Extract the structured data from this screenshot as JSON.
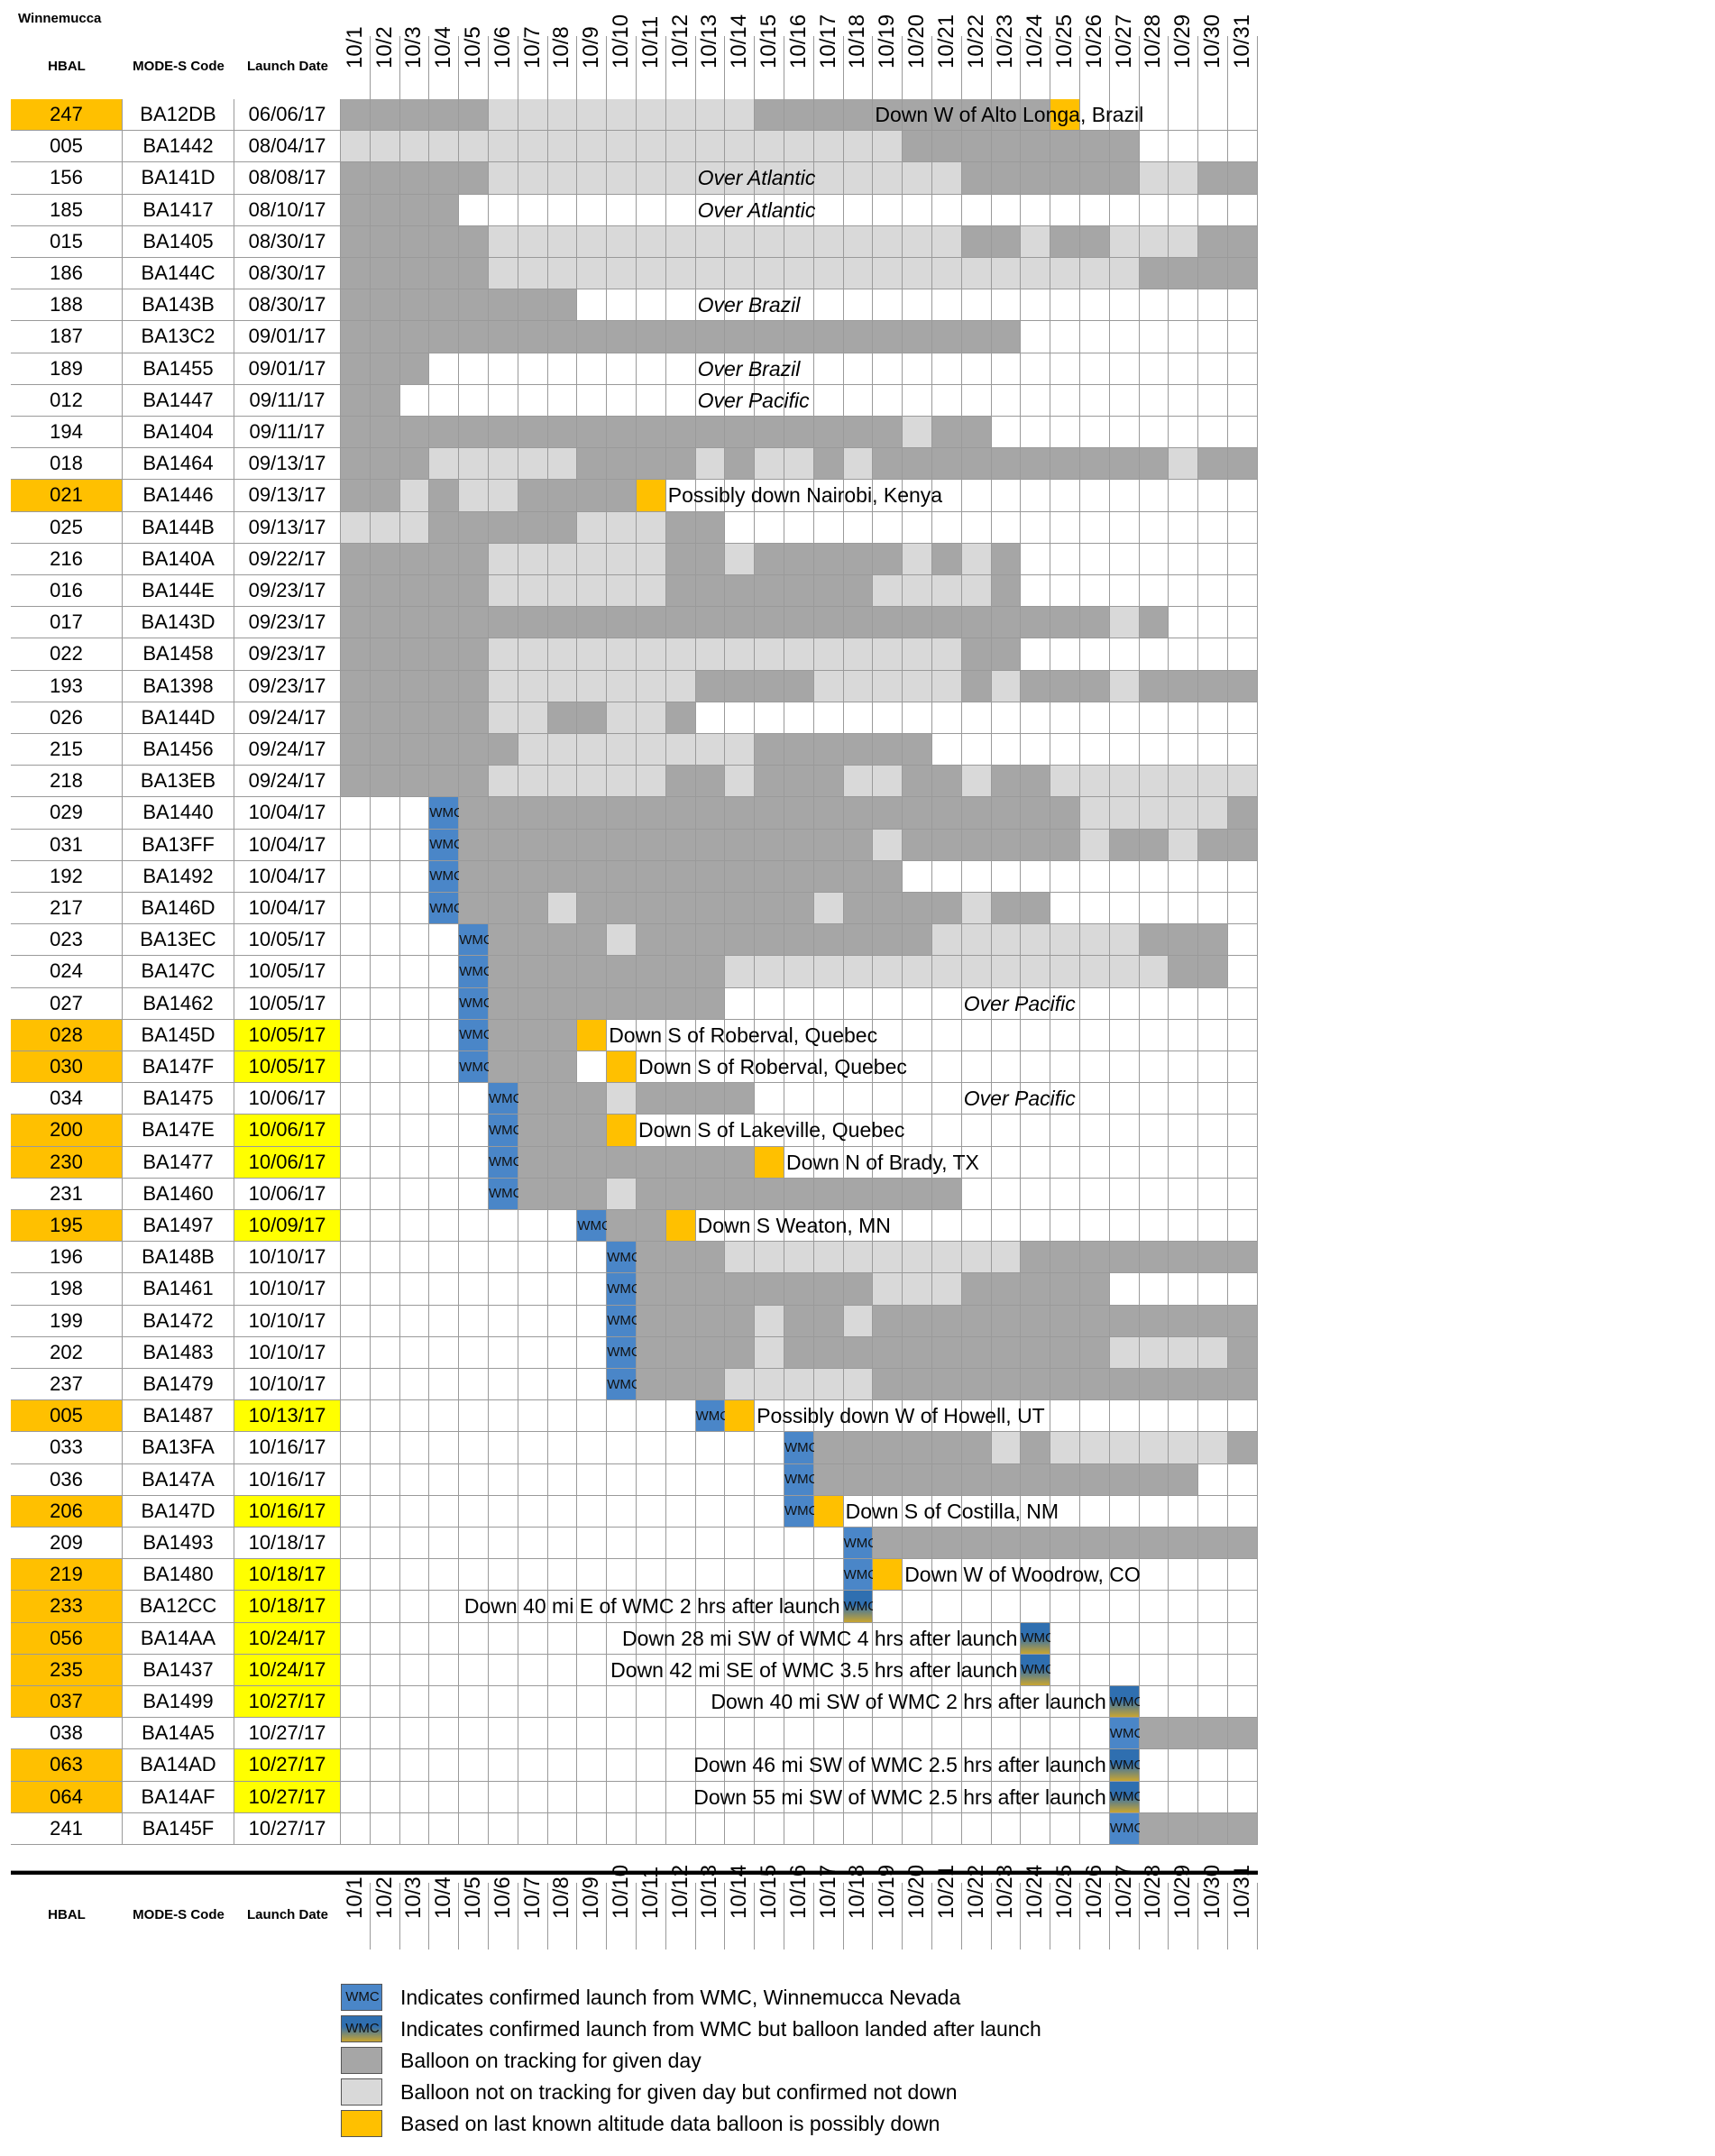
{
  "site_title": "Winnemucca",
  "headers": {
    "hbal": "HBAL",
    "mode_s": "MODE-S Code",
    "launch": "Launch Date"
  },
  "dates": [
    "10/1",
    "10/2",
    "10/3",
    "10/4",
    "10/5",
    "10/6",
    "10/7",
    "10/8",
    "10/9",
    "10/10",
    "10/11",
    "10/12",
    "10/13",
    "10/14",
    "10/15",
    "10/16",
    "10/17",
    "10/18",
    "10/19",
    "10/20",
    "10/21",
    "10/22",
    "10/23",
    "10/24",
    "10/25",
    "10/26",
    "10/27",
    "10/28",
    "10/29",
    "10/30",
    "10/31"
  ],
  "colors": {
    "dark": "#a6a6a6",
    "light": "#d9d9d9",
    "orange": "#ffc000",
    "yellow": "#ffff00",
    "blue": "#4a86c8",
    "blue_landed_top": "#2f6fb0",
    "blue_landed_bottom": "#c9a530"
  },
  "cell_codes": {
    "D": "Balloon on tracking for given day",
    "L": "Balloon not on tracking for given day but confirmed not down",
    "O": "Based on last known altitude data balloon is possibly down",
    "W": "Indicates confirmed launch from WMC, Winnemucca Nevada",
    "X": "Indicates confirmed launch from WMC but balloon landed after launch",
    "_": "no data"
  },
  "wmc_text": "WMC",
  "rows": [
    {
      "hbal": "247",
      "code": "BA12DB",
      "launch": "06/06/17",
      "hbal_hl": true,
      "date_hl": false,
      "cells": "DDDDDLLLLLLLLLDDDDDDDDDDO______",
      "note": "Down W of Alto Longa, Brazil",
      "note_start": 18,
      "italic": false
    },
    {
      "hbal": "005",
      "code": "BA1442",
      "launch": "08/04/17",
      "hbal_hl": false,
      "date_hl": false,
      "cells": "LLLLLLLLLLLLLLLLLLLDDDDDDDD____",
      "note": "",
      "note_start": 0,
      "italic": false
    },
    {
      "hbal": "156",
      "code": "BA141D",
      "launch": "08/08/17",
      "hbal_hl": false,
      "date_hl": false,
      "cells": "DDDDDLLLLLLLLLLLLLLLLDDDDDDLLDD",
      "note": "Over Atlantic",
      "note_start": 12,
      "italic": true
    },
    {
      "hbal": "185",
      "code": "BA1417",
      "launch": "08/10/17",
      "hbal_hl": false,
      "date_hl": false,
      "cells": "DDDD___________________________",
      "note": "Over Atlantic",
      "note_start": 12,
      "italic": true
    },
    {
      "hbal": "015",
      "code": "BA1405",
      "launch": "08/30/17",
      "hbal_hl": false,
      "date_hl": false,
      "cells": "DDDDDLLLLLLLLLLLLLLLLDDLDDLLLDD",
      "note": "",
      "note_start": 0,
      "italic": false
    },
    {
      "hbal": "186",
      "code": "BA144C",
      "launch": "08/30/17",
      "hbal_hl": false,
      "date_hl": false,
      "cells": "DDDDDLLLLLLLLLLLLLLLLLLLLLLDDDD",
      "note": "",
      "note_start": 0,
      "italic": false
    },
    {
      "hbal": "188",
      "code": "BA143B",
      "launch": "08/30/17",
      "hbal_hl": false,
      "date_hl": false,
      "cells": "DDDDDDDD_______________________",
      "note": "Over Brazil",
      "note_start": 12,
      "italic": true
    },
    {
      "hbal": "187",
      "code": "BA13C2",
      "launch": "09/01/17",
      "hbal_hl": false,
      "date_hl": false,
      "cells": "DDDDDDDDDDDDDDDDDDDDDDD________",
      "note": "",
      "note_start": 0,
      "italic": false
    },
    {
      "hbal": "189",
      "code": "BA1455",
      "launch": "09/01/17",
      "hbal_hl": false,
      "date_hl": false,
      "cells": "DDD____________________________",
      "note": "Over Brazil",
      "note_start": 12,
      "italic": true
    },
    {
      "hbal": "012",
      "code": "BA1447",
      "launch": "09/11/17",
      "hbal_hl": false,
      "date_hl": false,
      "cells": "DD_____________________________",
      "note": "Over Pacific",
      "note_start": 12,
      "italic": true
    },
    {
      "hbal": "194",
      "code": "BA1404",
      "launch": "09/11/17",
      "hbal_hl": false,
      "date_hl": false,
      "cells": "DDDDDDDDDDDDDDDDDDDLDD_________",
      "note": "",
      "note_start": 0,
      "italic": false
    },
    {
      "hbal": "018",
      "code": "BA1464",
      "launch": "09/13/17",
      "hbal_hl": false,
      "date_hl": false,
      "cells": "DDDLLLLLDDDDLDLLDLDDDDDDDDDDLDD",
      "note": "",
      "note_start": 0,
      "italic": false
    },
    {
      "hbal": "021",
      "code": "BA1446",
      "launch": "09/13/17",
      "hbal_hl": true,
      "date_hl": false,
      "cells": "DDLDLLDDDDO____________________",
      "note": "Possibly down Nairobi, Kenya",
      "note_start": 11,
      "italic": false
    },
    {
      "hbal": "025",
      "code": "BA144B",
      "launch": "09/13/17",
      "hbal_hl": false,
      "date_hl": false,
      "cells": "LLLDDDDDLLLDD__________________",
      "note": "",
      "note_start": 0,
      "italic": false
    },
    {
      "hbal": "216",
      "code": "BA140A",
      "launch": "09/22/17",
      "hbal_hl": false,
      "date_hl": false,
      "cells": "DDDDDLLLLLLDDLDDDDDLDLD________",
      "note": "",
      "note_start": 0,
      "italic": false
    },
    {
      "hbal": "016",
      "code": "BA144E",
      "launch": "09/23/17",
      "hbal_hl": false,
      "date_hl": false,
      "cells": "DDDDDLLLLLLDDDDDDDLLLLD________",
      "note": "",
      "note_start": 0,
      "italic": false
    },
    {
      "hbal": "017",
      "code": "BA143D",
      "launch": "09/23/17",
      "hbal_hl": false,
      "date_hl": false,
      "cells": "DDDDDDDDDDDDDDDDDDDDDDDDDDLD___",
      "note": "",
      "note_start": 0,
      "italic": false
    },
    {
      "hbal": "022",
      "code": "BA1458",
      "launch": "09/23/17",
      "hbal_hl": false,
      "date_hl": false,
      "cells": "DDDDDLLLLLLLLLLLLLLLLDD________",
      "note": "",
      "note_start": 0,
      "italic": false
    },
    {
      "hbal": "193",
      "code": "BA1398",
      "launch": "09/23/17",
      "hbal_hl": false,
      "date_hl": false,
      "cells": "DDDDDLLLLLLLDDDDLLLLLDLDDDLDDDD",
      "note": "",
      "note_start": 0,
      "italic": false
    },
    {
      "hbal": "026",
      "code": "BA144D",
      "launch": "09/24/17",
      "hbal_hl": false,
      "date_hl": false,
      "cells": "DDDDDLLDDLLD___________________",
      "note": "",
      "note_start": 0,
      "italic": false
    },
    {
      "hbal": "215",
      "code": "BA1456",
      "launch": "09/24/17",
      "hbal_hl": false,
      "date_hl": false,
      "cells": "DDDDDDLLLLLLLLDDDDDD___________",
      "note": "",
      "note_start": 0,
      "italic": false
    },
    {
      "hbal": "218",
      "code": "BA13EB",
      "launch": "09/24/17",
      "hbal_hl": false,
      "date_hl": false,
      "cells": "DDDDDLLLLLLDDLDDDLLDDLDDLLLLLLL",
      "note": "",
      "note_start": 0,
      "italic": false
    },
    {
      "hbal": "029",
      "code": "BA1440",
      "launch": "10/04/17",
      "hbal_hl": false,
      "date_hl": false,
      "cells": "___WDDDDDDDDDDDDDDDDDDDDDLLLLLD",
      "note": "",
      "note_start": 0,
      "italic": false
    },
    {
      "hbal": "031",
      "code": "BA13FF",
      "launch": "10/04/17",
      "hbal_hl": false,
      "date_hl": false,
      "cells": "___WDDDDDDDDDDDDDDLDDDDDDLDDLDD",
      "note": "",
      "note_start": 0,
      "italic": false
    },
    {
      "hbal": "192",
      "code": "BA1492",
      "launch": "10/04/17",
      "hbal_hl": false,
      "date_hl": false,
      "cells": "___WDDDDDDDDDDDDDDD____________",
      "note": "",
      "note_start": 0,
      "italic": false
    },
    {
      "hbal": "217",
      "code": "BA146D",
      "launch": "10/04/17",
      "hbal_hl": false,
      "date_hl": false,
      "cells": "___WDDDLDDDDDDDDLDDDDLDD_______",
      "note": "",
      "note_start": 0,
      "italic": false
    },
    {
      "hbal": "023",
      "code": "BA13EC",
      "launch": "10/05/17",
      "hbal_hl": false,
      "date_hl": false,
      "cells": "____WDDDDLDDDDDDDDDDLLLLLLLDDD_",
      "note": "",
      "note_start": 0,
      "italic": false
    },
    {
      "hbal": "024",
      "code": "BA147C",
      "launch": "10/05/17",
      "hbal_hl": false,
      "date_hl": false,
      "cells": "____WDDDDDDDDLLLLLLLLLLLLLLLDD_",
      "note": "",
      "note_start": 0,
      "italic": false
    },
    {
      "hbal": "027",
      "code": "BA1462",
      "launch": "10/05/17",
      "hbal_hl": false,
      "date_hl": false,
      "cells": "____WDDDDDDDD__________________",
      "note": "Over Pacific",
      "note_start": 21,
      "italic": true
    },
    {
      "hbal": "028",
      "code": "BA145D",
      "launch": "10/05/17",
      "hbal_hl": true,
      "date_hl": true,
      "cells": "____WDDDO______________________",
      "note": "Down S of Roberval, Quebec",
      "note_start": 9,
      "italic": false
    },
    {
      "hbal": "030",
      "code": "BA147F",
      "launch": "10/05/17",
      "hbal_hl": true,
      "date_hl": true,
      "cells": "____WDDD_O_____________________",
      "note": "Down S of Roberval, Quebec",
      "note_start": 10,
      "italic": false
    },
    {
      "hbal": "034",
      "code": "BA1475",
      "launch": "10/06/17",
      "hbal_hl": false,
      "date_hl": false,
      "cells": "_____WDDDLDDDD_________________",
      "note": "Over Pacific",
      "note_start": 21,
      "italic": true
    },
    {
      "hbal": "200",
      "code": "BA147E",
      "launch": "10/06/17",
      "hbal_hl": true,
      "date_hl": true,
      "cells": "_____WDDDO_____________________",
      "note": "Down S of Lakeville, Quebec",
      "note_start": 10,
      "italic": false
    },
    {
      "hbal": "230",
      "code": "BA1477",
      "launch": "10/06/17",
      "hbal_hl": true,
      "date_hl": true,
      "cells": "_____WDDDDDDDDO________________",
      "note": "Down N of Brady, TX",
      "note_start": 15,
      "italic": false
    },
    {
      "hbal": "231",
      "code": "BA1460",
      "launch": "10/06/17",
      "hbal_hl": false,
      "date_hl": false,
      "cells": "_____WDDDLDDDDDDDDDDD__________",
      "note": "",
      "note_start": 0,
      "italic": false
    },
    {
      "hbal": "195",
      "code": "BA1497",
      "launch": "10/09/17",
      "hbal_hl": true,
      "date_hl": true,
      "cells": "________WDDO___________________",
      "note": "Down S Weaton, MN",
      "note_start": 12,
      "italic": false
    },
    {
      "hbal": "196",
      "code": "BA148B",
      "launch": "10/10/17",
      "hbal_hl": false,
      "date_hl": false,
      "cells": "_________WDDDLLLLLLLLLLDDDDDDDD",
      "note": "",
      "note_start": 0,
      "italic": false
    },
    {
      "hbal": "198",
      "code": "BA1461",
      "launch": "10/10/17",
      "hbal_hl": false,
      "date_hl": false,
      "cells": "_________WDDDDDDDDLLLDDDDD_____",
      "note": "",
      "note_start": 0,
      "italic": false
    },
    {
      "hbal": "199",
      "code": "BA1472",
      "launch": "10/10/17",
      "hbal_hl": false,
      "date_hl": false,
      "cells": "_________WDDDDLDDLDDDDDDDDDDDDD",
      "note": "",
      "note_start": 0,
      "italic": false
    },
    {
      "hbal": "202",
      "code": "BA1483",
      "launch": "10/10/17",
      "hbal_hl": false,
      "date_hl": false,
      "cells": "_________WDDDDLDDDDDDDDDDDLLLLD",
      "note": "",
      "note_start": 0,
      "italic": false
    },
    {
      "hbal": "237",
      "code": "BA1479",
      "launch": "10/10/17",
      "hbal_hl": false,
      "date_hl": false,
      "cells": "_________WDDDLLLLLDDDDDDDDDDDDD",
      "note": "",
      "note_start": 0,
      "italic": false
    },
    {
      "hbal": "005",
      "code": "BA1487",
      "launch": "10/13/17",
      "hbal_hl": true,
      "date_hl": true,
      "cells": "____________WO_________________",
      "note": "Possibly down W of Howell, UT",
      "note_start": 14,
      "italic": false
    },
    {
      "hbal": "033",
      "code": "BA13FA",
      "launch": "10/16/17",
      "hbal_hl": false,
      "date_hl": false,
      "cells": "_______________WDDDDDDLDLLLLLLD",
      "note": "",
      "note_start": 0,
      "italic": false
    },
    {
      "hbal": "036",
      "code": "BA147A",
      "launch": "10/16/17",
      "hbal_hl": false,
      "date_hl": false,
      "cells": "_______________WDDDDDDDDDDDDD__",
      "note": "",
      "note_start": 0,
      "italic": false
    },
    {
      "hbal": "206",
      "code": "BA147D",
      "launch": "10/16/17",
      "hbal_hl": true,
      "date_hl": true,
      "cells": "_______________WO______________",
      "note": "Down S of Costilla, NM",
      "note_start": 17,
      "italic": false
    },
    {
      "hbal": "209",
      "code": "BA1493",
      "launch": "10/18/17",
      "hbal_hl": false,
      "date_hl": false,
      "cells": "_________________WDDDDDDDDDDDDD",
      "note": "",
      "note_start": 0,
      "italic": false
    },
    {
      "hbal": "219",
      "code": "BA1480",
      "launch": "10/18/17",
      "hbal_hl": true,
      "date_hl": true,
      "cells": "_________________WO____________",
      "note": "Down W of Woodrow, CO",
      "note_start": 19,
      "italic": false
    },
    {
      "hbal": "233",
      "code": "BA12CC",
      "launch": "10/18/17",
      "hbal_hl": true,
      "date_hl": true,
      "cells": "_________________X_____________",
      "note": "Down 40 mi E of WMC 2 hrs after launch",
      "note_start": 17,
      "italic": false
    },
    {
      "hbal": "056",
      "code": "BA14AA",
      "launch": "10/24/17",
      "hbal_hl": true,
      "date_hl": true,
      "cells": "_______________________X_______",
      "note": "Down 28 mi SW of WMC 4 hrs after launch",
      "note_start": 23,
      "italic": false
    },
    {
      "hbal": "235",
      "code": "BA1437",
      "launch": "10/24/17",
      "hbal_hl": true,
      "date_hl": true,
      "cells": "_______________________X_______",
      "note": "Down 42 mi SE of WMC 3.5 hrs after launch",
      "note_start": 23,
      "italic": false
    },
    {
      "hbal": "037",
      "code": "BA1499",
      "launch": "10/27/17",
      "hbal_hl": true,
      "date_hl": true,
      "cells": "__________________________X____",
      "note": "Down 40 mi SW of WMC 2 hrs after launch",
      "note_start": 26,
      "italic": false
    },
    {
      "hbal": "038",
      "code": "BA14A5",
      "launch": "10/27/17",
      "hbal_hl": false,
      "date_hl": false,
      "cells": "__________________________WDDDD",
      "note": "",
      "note_start": 0,
      "italic": false
    },
    {
      "hbal": "063",
      "code": "BA14AD",
      "launch": "10/27/17",
      "hbal_hl": true,
      "date_hl": true,
      "cells": "__________________________X____",
      "note": "Down 46 mi SW of WMC 2.5 hrs after launch",
      "note_start": 26,
      "italic": false
    },
    {
      "hbal": "064",
      "code": "BA14AF",
      "launch": "10/27/17",
      "hbal_hl": true,
      "date_hl": true,
      "cells": "__________________________X____",
      "note": "Down 55 mi SW of WMC 2.5 hrs after launch",
      "note_start": 26,
      "italic": false
    },
    {
      "hbal": "241",
      "code": "BA145F",
      "launch": "10/27/17",
      "hbal_hl": false,
      "date_hl": false,
      "cells": "__________________________WDDDD",
      "note": "",
      "note_start": 0,
      "italic": false
    }
  ],
  "legend": [
    {
      "type": "W",
      "text": "Indicates confirmed launch from WMC, Winnemucca Nevada",
      "box_text": "WMC"
    },
    {
      "type": "X",
      "text": "Indicates confirmed launch from WMC but balloon landed after launch",
      "box_text": "WMC"
    },
    {
      "type": "D",
      "text": "Balloon on tracking for given day",
      "box_text": ""
    },
    {
      "type": "L",
      "text": "Balloon not on tracking for given day but confirmed not down",
      "box_text": ""
    },
    {
      "type": "O",
      "text": "Based on last known altitude data balloon is possibly down",
      "box_text": ""
    }
  ]
}
